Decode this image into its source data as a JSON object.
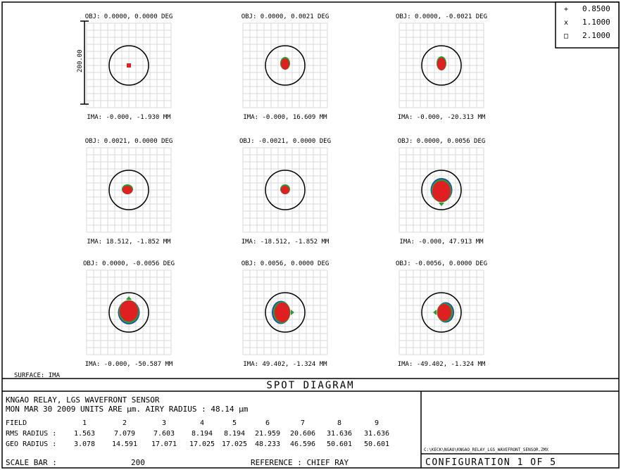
{
  "title": "SPOT DIAGRAM",
  "legend": [
    {
      "label": "0.8500",
      "color": "#1f3fd0",
      "marker": "+"
    },
    {
      "label": "1.1000",
      "color": "#1fa030",
      "marker": "x"
    },
    {
      "label": "2.1000",
      "color": "#e02020",
      "marker": "□"
    }
  ],
  "surface_label": "SURFACE: IMA",
  "scale_bar_text": "200.00",
  "info": {
    "line1": "KNGAO RELAY, LGS WAVEFRONT SENSOR",
    "line2": "MON MAR 30 2009   UNITS ARE µm.   AIRY RADIUS : 48.14 µm",
    "field_label": "FIELD",
    "field_values": [
      "1",
      "2",
      "3",
      "4",
      "5",
      "6",
      "7",
      "8",
      "9"
    ],
    "rms_label": "RMS RADIUS :",
    "rms_values": [
      "1.563",
      "7.079",
      "7.603",
      "8.194",
      "8.194",
      "21.959",
      "20.606",
      "31.636",
      "31.636"
    ],
    "geo_label": "GEO RADIUS :",
    "geo_values": [
      "3.078",
      "14.591",
      "17.071",
      "17.025",
      "17.025",
      "48.233",
      "46.596",
      "50.601",
      "50.601"
    ],
    "scale_label": "SCALE BAR  :",
    "scale_value": "200",
    "reference": "REFERENCE   : CHIEF RAY",
    "file_path": "C:\\KECK\\NGAO\\KNGAO_RELAY_LGS_WAVEFRONT_SENSOR.ZMX",
    "configuration": "CONFIGURATION  1  OF  5"
  },
  "chart_data": {
    "type": "scatter",
    "title": "SPOT DIAGRAM",
    "units": "µm",
    "airy_radius": 48.14,
    "wavelengths": [
      "0.8500",
      "1.1000",
      "2.1000"
    ],
    "scale_bar": 200,
    "fields": [
      {
        "obj": "OBJ: 0.0000, 0.0000 DEG",
        "ima": "IMA: -0.000, -1.930 MM",
        "spot_x": 0,
        "spot_y": 0,
        "rx": 3,
        "ry": 3,
        "shape": "square"
      },
      {
        "obj": "OBJ: 0.0000, 0.0021 DEG",
        "ima": "IMA: -0.000, 16.609 MM",
        "spot_x": 0,
        "spot_y": -2,
        "rx": 6,
        "ry": 8,
        "shape": "drop"
      },
      {
        "obj": "OBJ: 0.0000, -0.0021 DEG",
        "ima": "IMA: -0.000, -20.313 MM",
        "spot_x": 0,
        "spot_y": -2,
        "rx": 6,
        "ry": 9,
        "shape": "drop"
      },
      {
        "obj": "OBJ: 0.0021, 0.0000 DEG",
        "ima": "IMA: 18.512, -1.852 MM",
        "spot_x": -2,
        "spot_y": 0,
        "rx": 7,
        "ry": 6,
        "shape": "blob"
      },
      {
        "obj": "OBJ: -0.0021, 0.0000 DEG",
        "ima": "IMA: -18.512, -1.852 MM",
        "spot_x": 0,
        "spot_y": 0,
        "rx": 6,
        "ry": 6,
        "shape": "blob"
      },
      {
        "obj": "OBJ: 0.0000, 0.0056 DEG",
        "ima": "IMA: -0.000, 47.913 MM",
        "spot_x": 0,
        "spot_y": 2,
        "rx": 14,
        "ry": 16,
        "shape": "fan-down"
      },
      {
        "obj": "OBJ: 0.0000, -0.0056 DEG",
        "ima": "IMA: -0.000, -50.587 MM",
        "spot_x": 0,
        "spot_y": -2,
        "rx": 14,
        "ry": 16,
        "shape": "fan-up"
      },
      {
        "obj": "OBJ: 0.0056, 0.0000 DEG",
        "ima": "IMA: 49.402, -1.324 MM",
        "spot_x": -4,
        "spot_y": 0,
        "rx": 15,
        "ry": 12,
        "shape": "fan-left"
      },
      {
        "obj": "OBJ: -0.0056, 0.0000 DEG",
        "ima": "IMA: -49.402, -1.324 MM",
        "spot_x": 4,
        "spot_y": 0,
        "rx": 13,
        "ry": 11,
        "shape": "fan-right"
      }
    ]
  }
}
